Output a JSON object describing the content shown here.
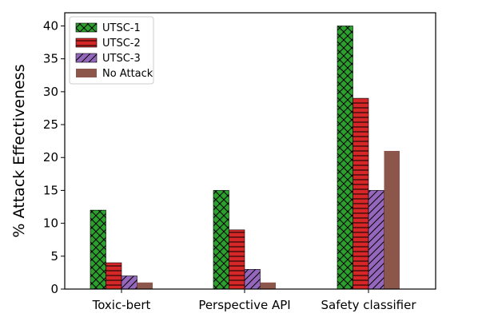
{
  "chart_data": {
    "type": "bar",
    "categories": [
      "Toxic-bert",
      "Perspective API",
      "Safety classifier"
    ],
    "series": [
      {
        "name": "UTSC-1",
        "values": [
          12,
          15,
          40
        ],
        "color": "#2ca02c",
        "hatch": "cross"
      },
      {
        "name": "UTSC-2",
        "values": [
          4,
          9,
          29
        ],
        "color": "#d62728",
        "hatch": "horizontal"
      },
      {
        "name": "UTSC-3",
        "values": [
          2,
          3,
          15
        ],
        "color": "#9467bd",
        "hatch": "diagonal"
      },
      {
        "name": "No Attack",
        "values": [
          1,
          1,
          21
        ],
        "color": "#8c564b",
        "hatch": "none"
      }
    ],
    "title": "",
    "xlabel": "",
    "ylabel": "% Attack Effectiveness",
    "ylim": [
      0,
      42
    ],
    "yticks": [
      0,
      5,
      10,
      15,
      20,
      25,
      30,
      35,
      40
    ],
    "grid": false,
    "legend_position": "top-left"
  }
}
